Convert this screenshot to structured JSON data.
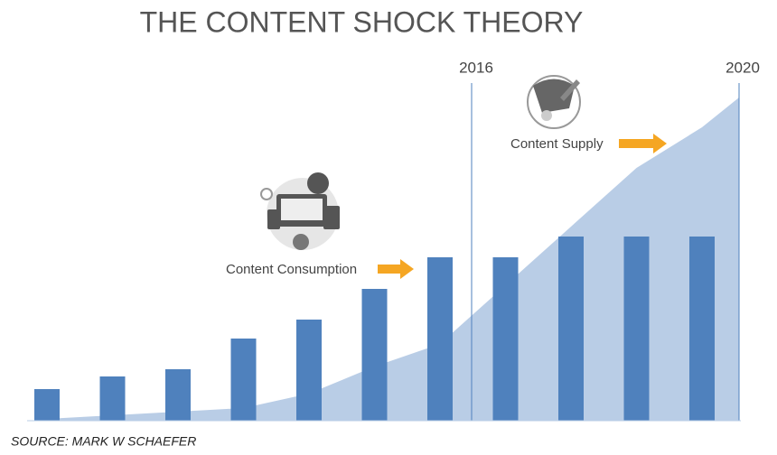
{
  "chart_data": {
    "type": "bar",
    "title": "THE CONTENT SHOCK THEORY",
    "series": [
      {
        "name": "Content Consumption",
        "color": "#4f81bd",
        "values": [
          35,
          49,
          57,
          91,
          112,
          146,
          181,
          181,
          204,
          204,
          204
        ]
      },
      {
        "name": "Content Supply",
        "color": "#b9cde6",
        "kind": "area",
        "values": [
          2,
          6,
          10,
          14,
          30,
          60,
          85,
          150,
          215,
          280,
          325
        ]
      }
    ],
    "markers": [
      "2016",
      "2020"
    ],
    "source": "SOURCE: MARK W SCHAEFER"
  }
}
